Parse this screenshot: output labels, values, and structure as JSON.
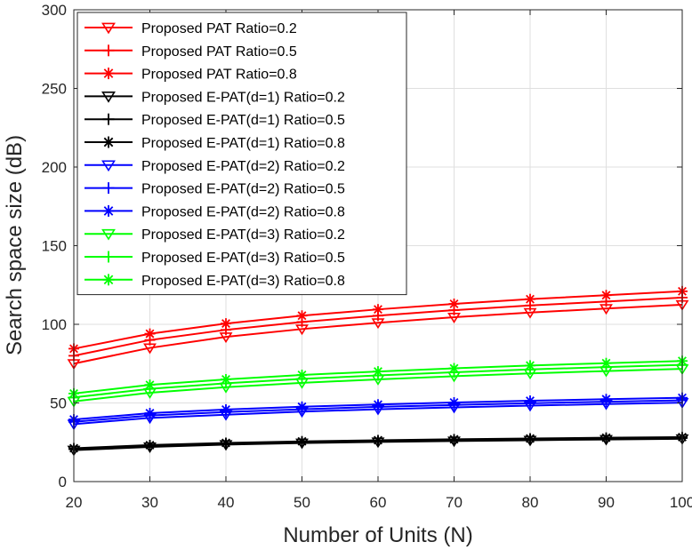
{
  "chart_data": {
    "type": "line",
    "xlabel": "Number of Units (N)",
    "ylabel": "Search space size (dB)",
    "xlim": [
      20,
      100
    ],
    "ylim": [
      0,
      300
    ],
    "xticks": [
      20,
      30,
      40,
      50,
      60,
      70,
      80,
      90,
      100
    ],
    "yticks": [
      0,
      50,
      100,
      150,
      200,
      250,
      300
    ],
    "grid": true,
    "legend_position": "top-left",
    "x": [
      20,
      30,
      40,
      50,
      60,
      70,
      80,
      90,
      100
    ],
    "series": [
      {
        "name": "Proposed PAT Ratio=0.2",
        "color": "#ff0000",
        "marker": "triangle-down",
        "values": [
          75,
          85,
          92,
          97,
          101,
          104.5,
          107.5,
          110,
          112.5
        ]
      },
      {
        "name": "Proposed PAT Ratio=0.5",
        "color": "#ff0000",
        "marker": "plus",
        "values": [
          80,
          90,
          96.5,
          101.5,
          105.5,
          109,
          112,
          114.5,
          117
        ]
      },
      {
        "name": "Proposed PAT Ratio=0.8",
        "color": "#ff0000",
        "marker": "asterisk",
        "values": [
          84.5,
          94,
          100.5,
          105.5,
          109.5,
          113,
          116,
          118.5,
          121
        ]
      },
      {
        "name": "Proposed E-PAT(d=1) Ratio=0.2",
        "color": "#000000",
        "marker": "triangle-down",
        "values": [
          20,
          22,
          23.5,
          24.5,
          25.2,
          25.8,
          26.3,
          26.8,
          27.2
        ]
      },
      {
        "name": "Proposed E-PAT(d=1) Ratio=0.5",
        "color": "#000000",
        "marker": "plus",
        "values": [
          20.6,
          22.6,
          24,
          25,
          25.7,
          26.3,
          26.8,
          27.3,
          27.7
        ]
      },
      {
        "name": "Proposed E-PAT(d=1) Ratio=0.8",
        "color": "#000000",
        "marker": "asterisk",
        "values": [
          21.2,
          23.2,
          24.6,
          25.6,
          26.3,
          26.9,
          27.4,
          27.9,
          28.3
        ]
      },
      {
        "name": "Proposed E-PAT(d=2) Ratio=0.2",
        "color": "#0000ff",
        "marker": "triangle-down",
        "values": [
          36.5,
          40.5,
          42.5,
          44.5,
          46,
          47.2,
          48.3,
          49.3,
          50.2
        ]
      },
      {
        "name": "Proposed E-PAT(d=2) Ratio=0.5",
        "color": "#0000ff",
        "marker": "plus",
        "values": [
          38,
          42,
          44.2,
          46,
          47.5,
          48.7,
          49.8,
          50.8,
          51.7
        ]
      },
      {
        "name": "Proposed E-PAT(d=2) Ratio=0.8",
        "color": "#0000ff",
        "marker": "asterisk",
        "values": [
          39.5,
          43.5,
          45.8,
          47.6,
          49,
          50.3,
          51.4,
          52.4,
          53.3
        ]
      },
      {
        "name": "Proposed E-PAT(d=3) Ratio=0.2",
        "color": "#00ff00",
        "marker": "triangle-down",
        "values": [
          51,
          56.5,
          60,
          62.8,
          65,
          67,
          68.8,
          70.3,
          71.7
        ]
      },
      {
        "name": "Proposed E-PAT(d=3) Ratio=0.5",
        "color": "#00ff00",
        "marker": "plus",
        "values": [
          53.5,
          59,
          62.5,
          65.3,
          67.5,
          69.5,
          71.3,
          72.8,
          74.2
        ]
      },
      {
        "name": "Proposed E-PAT(d=3) Ratio=0.8",
        "color": "#00ff00",
        "marker": "asterisk",
        "values": [
          56,
          61.5,
          65,
          67.8,
          70,
          72,
          73.8,
          75.3,
          76.7
        ]
      }
    ]
  }
}
